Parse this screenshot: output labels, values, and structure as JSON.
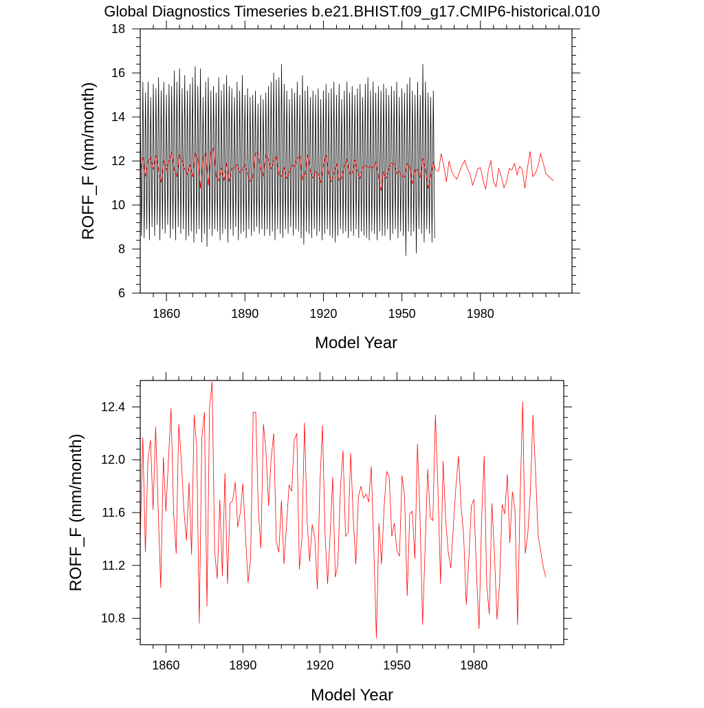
{
  "title": "Global Diagnostics Timeseries b.e21.BHIST.f09_g17.CMIP6-historical.010",
  "chart_data": [
    {
      "type": "line",
      "id": "monthly",
      "title": "Global Diagnostics Timeseries b.e21.BHIST.f09_g17.CMIP6-historical.010",
      "xlabel": "Model Year",
      "ylabel": "ROFF_F (mm/month)",
      "xlim": [
        1850,
        2015
      ],
      "ylim": [
        6,
        18
      ],
      "xticks": [
        1860,
        1890,
        1920,
        1950,
        1980
      ],
      "xtick_labels": [
        "1860",
        "1890",
        "1920",
        "1950",
        "1980"
      ],
      "yticks": [
        6,
        8,
        10,
        12,
        14,
        16,
        18
      ],
      "ytick_labels": [
        "6",
        "8",
        "10",
        "12",
        "14",
        "16",
        "18"
      ],
      "series": [
        {
          "name": "monthly",
          "color": "#000000",
          "x_start": 1850,
          "x_step": 0.5,
          "values": [
            14.5,
            8.6,
            15.6,
            8.5,
            15.1,
            8.9,
            15.6,
            8.4,
            14.9,
            9.0,
            15.5,
            8.6,
            15.3,
            9.1,
            15.8,
            8.4,
            15.2,
            8.9,
            15.6,
            8.7,
            15.0,
            9.1,
            15.5,
            8.5,
            15.4,
            8.9,
            16.1,
            8.4,
            15.6,
            9.0,
            16.2,
            8.7,
            15.3,
            8.9,
            15.9,
            8.4,
            15.2,
            8.6,
            15.5,
            8.8,
            15.8,
            8.3,
            16.3,
            8.7,
            15.4,
            8.9,
            16.2,
            8.3,
            14.9,
            8.7,
            15.6,
            8.1,
            15.8,
            8.9,
            15.2,
            8.6,
            15.4,
            8.9,
            15.1,
            8.8,
            15.8,
            8.4,
            15.2,
            8.7,
            15.5,
            8.9,
            15.9,
            8.3,
            15.4,
            8.9,
            15.3,
            8.6,
            14.9,
            9.0,
            15.6,
            8.4,
            15.2,
            8.7,
            15.9,
            8.8,
            15.0,
            8.5,
            15.3,
            8.9,
            14.9,
            8.6,
            15.0,
            8.8,
            15.2,
            9.0,
            14.6,
            8.7,
            15.0,
            8.9,
            14.8,
            8.6,
            15.1,
            8.9,
            15.4,
            8.6,
            15.6,
            8.8,
            16.0,
            8.4,
            15.7,
            8.9,
            15.8,
            8.7,
            16.4,
            8.5,
            15.5,
            8.9,
            15.2,
            8.7,
            14.8,
            9.0,
            15.3,
            8.6,
            15.1,
            8.9,
            15.6,
            8.8,
            15.0,
            8.5,
            15.9,
            8.2,
            15.2,
            8.8,
            15.4,
            8.7,
            14.9,
            8.5,
            15.2,
            8.9,
            15.0,
            8.6,
            15.3,
            8.8,
            14.8,
            8.4,
            15.2,
            8.7,
            15.5,
            8.9,
            15.1,
            8.6,
            15.3,
            8.5,
            15.6,
            8.3,
            15.0,
            8.6,
            15.5,
            8.9,
            14.8,
            8.7,
            15.2,
            8.8,
            15.6,
            8.5,
            15.1,
            8.8,
            15.4,
            8.6,
            15.0,
            8.9,
            15.3,
            8.5,
            15.5,
            8.8,
            14.9,
            8.6,
            15.5,
            8.5,
            15.8,
            8.4,
            15.2,
            8.8,
            15.6,
            8.7,
            15.1,
            8.4,
            15.4,
            8.8,
            15.2,
            8.6,
            15.5,
            8.6,
            15.3,
            8.9,
            15.0,
            8.4,
            15.4,
            8.7,
            15.2,
            8.9,
            15.6,
            8.5,
            14.9,
            8.8,
            15.3,
            8.6,
            15.1,
            7.7,
            15.5,
            8.8,
            15.8,
            8.6,
            15.2,
            8.8,
            15.0,
            7.8,
            15.6,
            8.9,
            15.0,
            8.7,
            16.4,
            8.3,
            15.6,
            8.9,
            15.1,
            8.7,
            14.9,
            8.3,
            15.2,
            8.5
          ]
        },
        {
          "name": "annual",
          "color": "#ff0000",
          "x_start": 1850,
          "x_step": 1,
          "values": [
            11.4,
            12.17,
            11.3,
            12.0,
            12.15,
            11.62,
            12.25,
            11.62,
            11.03,
            12.02,
            11.61,
            12.0,
            12.39,
            11.6,
            11.29,
            12.27,
            12.0,
            11.62,
            11.39,
            11.83,
            11.28,
            12.34,
            12.1,
            10.76,
            12.17,
            12.36,
            10.89,
            12.4,
            12.59,
            11.3,
            11.1,
            11.7,
            11.12,
            11.9,
            11.06,
            11.67,
            11.69,
            11.83,
            11.49,
            11.6,
            11.82,
            11.43,
            11.07,
            11.25,
            12.36,
            12.36,
            11.62,
            11.33,
            12.27,
            12.06,
            11.65,
            12.01,
            12.2,
            11.38,
            11.3,
            11.69,
            11.21,
            11.51,
            11.81,
            11.76,
            12.15,
            12.2,
            11.17,
            11.41,
            12.28,
            11.54,
            11.23,
            11.51,
            11.41,
            11.02,
            11.82,
            12.26,
            11.44,
            11.06,
            11.44,
            11.87,
            11.11,
            11.21,
            11.79,
            12.07,
            11.42,
            11.45,
            12.05,
            11.55,
            11.21,
            11.72,
            11.8,
            11.71,
            11.74,
            11.68,
            11.95,
            11.33,
            10.65,
            11.52,
            11.21,
            11.64,
            11.91,
            11.87,
            11.42,
            11.52,
            11.31,
            11.27,
            11.88,
            11.72,
            10.97,
            11.59,
            11.61,
            11.25,
            12.12,
            11.57,
            10.75,
            11.34,
            11.93,
            11.56,
            11.54,
            12.34,
            11.77,
            11.06,
            11.99,
            11.55,
            11.3,
            11.18,
            11.5,
            11.8,
            12.03,
            11.65,
            11.43,
            10.9,
            11.24,
            11.65,
            11.7,
            11.14,
            10.72,
            11.55,
            12.03,
            11.05,
            10.83,
            11.67,
            11.29,
            10.79,
            11.06,
            11.66,
            11.59,
            11.89,
            11.37,
            11.76,
            11.62,
            10.75,
            11.71,
            12.44,
            11.29,
            11.44,
            11.76,
            12.34,
            11.92,
            11.43,
            11.31,
            11.19,
            11.11
          ]
        }
      ]
    },
    {
      "type": "line",
      "id": "annual",
      "title": "",
      "xlabel": "Model Year",
      "ylabel": "ROFF_F (mm/month)",
      "xlim": [
        1850,
        2015
      ],
      "ylim": [
        10.6,
        12.6
      ],
      "xticks": [
        1860,
        1890,
        1920,
        1950,
        1980
      ],
      "xtick_labels": [
        "1860",
        "1890",
        "1920",
        "1950",
        "1980"
      ],
      "yticks": [
        10.8,
        11.2,
        11.6,
        12.0,
        12.4
      ],
      "ytick_labels": [
        "10.8",
        "11.2",
        "11.6",
        "12.0",
        "12.4"
      ],
      "series": [
        {
          "name": "annual",
          "color": "#ff0000",
          "x_start": 1850,
          "x_step": 1,
          "values": [
            11.4,
            12.17,
            11.3,
            12.0,
            12.15,
            11.62,
            12.25,
            11.62,
            11.03,
            12.02,
            11.61,
            12.0,
            12.39,
            11.6,
            11.29,
            12.27,
            12.0,
            11.62,
            11.39,
            11.83,
            11.28,
            12.34,
            12.1,
            10.76,
            12.17,
            12.36,
            10.89,
            12.4,
            12.59,
            11.3,
            11.1,
            11.7,
            11.12,
            11.9,
            11.06,
            11.67,
            11.69,
            11.83,
            11.49,
            11.6,
            11.82,
            11.43,
            11.07,
            11.25,
            12.36,
            12.36,
            11.62,
            11.33,
            12.27,
            12.06,
            11.65,
            12.01,
            12.2,
            11.38,
            11.3,
            11.69,
            11.21,
            11.51,
            11.81,
            11.76,
            12.15,
            12.2,
            11.17,
            11.41,
            12.28,
            11.54,
            11.23,
            11.51,
            11.41,
            11.02,
            11.82,
            12.26,
            11.44,
            11.06,
            11.44,
            11.87,
            11.11,
            11.21,
            11.79,
            12.07,
            11.42,
            11.45,
            12.05,
            11.55,
            11.21,
            11.72,
            11.8,
            11.71,
            11.74,
            11.68,
            11.95,
            11.33,
            10.65,
            11.52,
            11.21,
            11.64,
            11.91,
            11.87,
            11.42,
            11.52,
            11.31,
            11.27,
            11.88,
            11.72,
            10.97,
            11.59,
            11.61,
            11.25,
            12.12,
            11.57,
            10.75,
            11.34,
            11.93,
            11.56,
            11.54,
            12.34,
            11.77,
            11.06,
            11.99,
            11.55,
            11.3,
            11.18,
            11.5,
            11.8,
            12.03,
            11.65,
            11.43,
            10.9,
            11.24,
            11.65,
            11.7,
            11.14,
            10.72,
            11.55,
            12.03,
            11.05,
            10.83,
            11.67,
            11.29,
            10.79,
            11.06,
            11.66,
            11.59,
            11.89,
            11.37,
            11.76,
            11.62,
            10.75,
            11.71,
            12.44,
            11.29,
            11.44,
            11.76,
            12.34,
            11.92,
            11.43,
            11.31,
            11.19,
            11.11
          ]
        }
      ]
    }
  ]
}
